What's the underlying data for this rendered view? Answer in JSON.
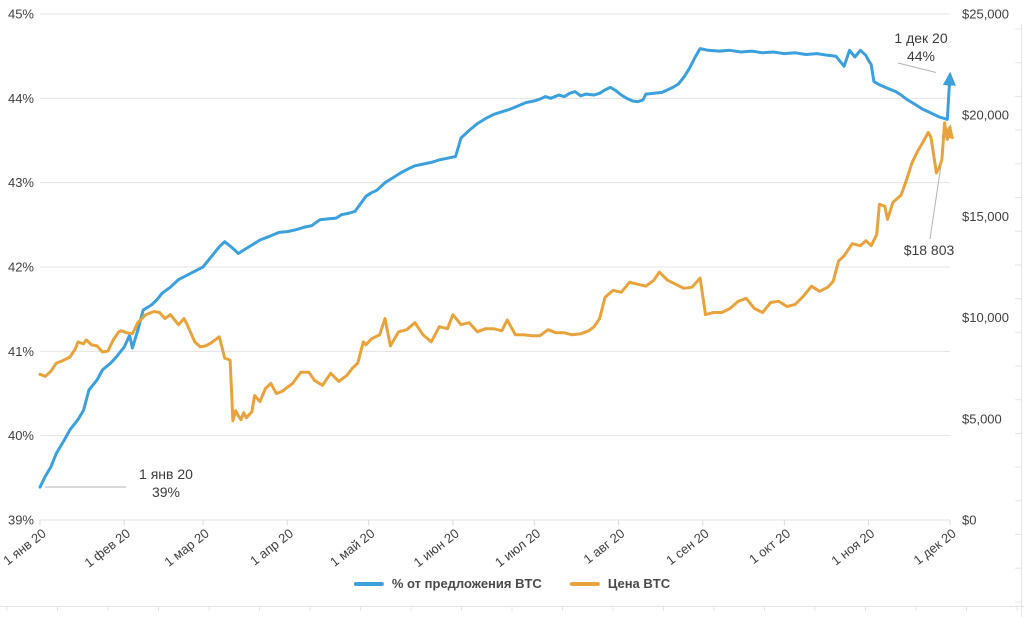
{
  "chart_data": {
    "type": "line",
    "title": "",
    "x_axis": {
      "unit": "day_of_year_2020",
      "range": [
        0,
        335
      ],
      "tick_positions": [
        0,
        31,
        60,
        91,
        121,
        152,
        182,
        213,
        244,
        274,
        305,
        335
      ],
      "tick_labels": [
        "1 янв 20",
        "1 фев 20",
        "1 мар 20",
        "1 апр 20",
        "1 май 20",
        "1 июн 20",
        "1 июл 20",
        "1 авг 20",
        "1 сен 20",
        "1 окт 20",
        "1 ноя 20",
        "1 дек 20"
      ]
    },
    "y_axis_left": {
      "unit": "percent",
      "range": [
        39,
        45
      ],
      "tick_values": [
        39,
        40,
        41,
        42,
        43,
        44,
        45
      ],
      "tick_labels": [
        "39%",
        "40%",
        "41%",
        "42%",
        "43%",
        "44%",
        "45%"
      ]
    },
    "y_axis_right": {
      "unit": "USD",
      "range": [
        0,
        25000
      ],
      "tick_values": [
        0,
        5000,
        10000,
        15000,
        20000,
        25000
      ],
      "tick_labels": [
        "$0",
        "$5,000",
        "$10,000",
        "$15,000",
        "$20,000",
        "$25,000"
      ]
    },
    "grid": "horizontal-on-percent-ticks",
    "legend_position": "bottom-center",
    "series": [
      {
        "name": "% от предложения BTC",
        "axis": "left",
        "color": "#3BA0DC",
        "points": [
          [
            0,
            39.39
          ],
          [
            2,
            39.52
          ],
          [
            4,
            39.63
          ],
          [
            6,
            39.79
          ],
          [
            9,
            39.95
          ],
          [
            11,
            40.07
          ],
          [
            14,
            40.19
          ],
          [
            16,
            40.3
          ],
          [
            18,
            40.54
          ],
          [
            21,
            40.66
          ],
          [
            23,
            40.78
          ],
          [
            26,
            40.86
          ],
          [
            28,
            40.93
          ],
          [
            31,
            41.05
          ],
          [
            33,
            41.19
          ],
          [
            34,
            41.04
          ],
          [
            36,
            41.25
          ],
          [
            38,
            41.49
          ],
          [
            41,
            41.55
          ],
          [
            43,
            41.61
          ],
          [
            45,
            41.69
          ],
          [
            48,
            41.76
          ],
          [
            51,
            41.85
          ],
          [
            54,
            41.9
          ],
          [
            57,
            41.95
          ],
          [
            60,
            42.0
          ],
          [
            63,
            42.12
          ],
          [
            66,
            42.24
          ],
          [
            68,
            42.3
          ],
          [
            71,
            42.22
          ],
          [
            73,
            42.16
          ],
          [
            76,
            42.22
          ],
          [
            79,
            42.28
          ],
          [
            81,
            42.32
          ],
          [
            85,
            42.37
          ],
          [
            88,
            42.41
          ],
          [
            91,
            42.42
          ],
          [
            94,
            42.44
          ],
          [
            97,
            42.47
          ],
          [
            100,
            42.49
          ],
          [
            103,
            42.56
          ],
          [
            106,
            42.57
          ],
          [
            109,
            42.58
          ],
          [
            111,
            42.62
          ],
          [
            114,
            42.64
          ],
          [
            116,
            42.66
          ],
          [
            118,
            42.75
          ],
          [
            120,
            42.84
          ],
          [
            122,
            42.88
          ],
          [
            124,
            42.91
          ],
          [
            127,
            43.0
          ],
          [
            130,
            43.06
          ],
          [
            133,
            43.12
          ],
          [
            136,
            43.17
          ],
          [
            138,
            43.2
          ],
          [
            141,
            43.22
          ],
          [
            144,
            43.24
          ],
          [
            147,
            43.27
          ],
          [
            150,
            43.29
          ],
          [
            153,
            43.31
          ],
          [
            155,
            43.53
          ],
          [
            158,
            43.62
          ],
          [
            161,
            43.7
          ],
          [
            164,
            43.76
          ],
          [
            167,
            43.81
          ],
          [
            170,
            43.84
          ],
          [
            173,
            43.87
          ],
          [
            176,
            43.91
          ],
          [
            179,
            43.95
          ],
          [
            182,
            43.97
          ],
          [
            184,
            43.99
          ],
          [
            186,
            44.02
          ],
          [
            188,
            44.0
          ],
          [
            191,
            44.04
          ],
          [
            193,
            44.02
          ],
          [
            195,
            44.06
          ],
          [
            197,
            44.08
          ],
          [
            199,
            44.03
          ],
          [
            201,
            44.05
          ],
          [
            204,
            44.04
          ],
          [
            206,
            44.06
          ],
          [
            208,
            44.1
          ],
          [
            210,
            44.13
          ],
          [
            212,
            44.09
          ],
          [
            214,
            44.04
          ],
          [
            216,
            44.0
          ],
          [
            218,
            43.97
          ],
          [
            220,
            43.96
          ],
          [
            222,
            43.98
          ],
          [
            223,
            44.05
          ],
          [
            226,
            44.06
          ],
          [
            229,
            44.07
          ],
          [
            231,
            44.1
          ],
          [
            233,
            44.13
          ],
          [
            235,
            44.17
          ],
          [
            237,
            44.25
          ],
          [
            239,
            44.35
          ],
          [
            241,
            44.48
          ],
          [
            243,
            44.59
          ],
          [
            246,
            44.57
          ],
          [
            250,
            44.56
          ],
          [
            254,
            44.57
          ],
          [
            258,
            44.55
          ],
          [
            262,
            44.56
          ],
          [
            266,
            44.54
          ],
          [
            270,
            44.55
          ],
          [
            274,
            44.53
          ],
          [
            278,
            44.54
          ],
          [
            282,
            44.52
          ],
          [
            286,
            44.53
          ],
          [
            290,
            44.51
          ],
          [
            293,
            44.5
          ],
          [
            296,
            44.38
          ],
          [
            298,
            44.57
          ],
          [
            300,
            44.49
          ],
          [
            302,
            44.57
          ],
          [
            304,
            44.51
          ],
          [
            305,
            44.45
          ],
          [
            306,
            44.4
          ],
          [
            307,
            44.2
          ],
          [
            309,
            44.16
          ],
          [
            312,
            44.12
          ],
          [
            315,
            44.08
          ],
          [
            317,
            44.04
          ],
          [
            319,
            43.99
          ],
          [
            321,
            43.95
          ],
          [
            323,
            43.91
          ],
          [
            325,
            43.87
          ],
          [
            327,
            43.84
          ],
          [
            329,
            43.81
          ],
          [
            331,
            43.78
          ],
          [
            333,
            43.76
          ],
          [
            334,
            43.75
          ],
          [
            335,
            44.28
          ]
        ]
      },
      {
        "name": "Цена BTC",
        "axis": "right",
        "color": "#E8A33C",
        "points": [
          [
            0,
            7200
          ],
          [
            2,
            7100
          ],
          [
            4,
            7350
          ],
          [
            6,
            7750
          ],
          [
            8,
            7850
          ],
          [
            11,
            8050
          ],
          [
            13,
            8450
          ],
          [
            14,
            8800
          ],
          [
            16,
            8700
          ],
          [
            17,
            8900
          ],
          [
            19,
            8650
          ],
          [
            21,
            8600
          ],
          [
            23,
            8300
          ],
          [
            25,
            8350
          ],
          [
            27,
            8900
          ],
          [
            29,
            9300
          ],
          [
            30,
            9350
          ],
          [
            32,
            9250
          ],
          [
            34,
            9200
          ],
          [
            36,
            9750
          ],
          [
            39,
            10150
          ],
          [
            42,
            10300
          ],
          [
            44,
            10250
          ],
          [
            46,
            9950
          ],
          [
            48,
            10150
          ],
          [
            51,
            9650
          ],
          [
            53,
            9950
          ],
          [
            54,
            9700
          ],
          [
            57,
            8800
          ],
          [
            59,
            8550
          ],
          [
            61,
            8600
          ],
          [
            63,
            8750
          ],
          [
            66,
            9050
          ],
          [
            68,
            8000
          ],
          [
            70,
            7900
          ],
          [
            71,
            4900
          ],
          [
            72,
            5400
          ],
          [
            73,
            5150
          ],
          [
            74,
            4950
          ],
          [
            75,
            5300
          ],
          [
            76,
            5050
          ],
          [
            78,
            5350
          ],
          [
            79,
            6150
          ],
          [
            81,
            5850
          ],
          [
            83,
            6500
          ],
          [
            85,
            6750
          ],
          [
            87,
            6250
          ],
          [
            89,
            6350
          ],
          [
            90,
            6450
          ],
          [
            93,
            6750
          ],
          [
            96,
            7300
          ],
          [
            99,
            7300
          ],
          [
            101,
            6900
          ],
          [
            104,
            6650
          ],
          [
            107,
            7250
          ],
          [
            110,
            6850
          ],
          [
            113,
            7150
          ],
          [
            115,
            7500
          ],
          [
            117,
            7750
          ],
          [
            119,
            8800
          ],
          [
            120,
            8650
          ],
          [
            122,
            8950
          ],
          [
            125,
            9150
          ],
          [
            127,
            9950
          ],
          [
            129,
            8600
          ],
          [
            132,
            9300
          ],
          [
            135,
            9400
          ],
          [
            138,
            9750
          ],
          [
            141,
            9150
          ],
          [
            144,
            8800
          ],
          [
            147,
            9550
          ],
          [
            150,
            9450
          ],
          [
            152,
            10150
          ],
          [
            155,
            9650
          ],
          [
            158,
            9750
          ],
          [
            161,
            9300
          ],
          [
            164,
            9450
          ],
          [
            167,
            9450
          ],
          [
            170,
            9350
          ],
          [
            172,
            9880
          ],
          [
            175,
            9150
          ],
          [
            178,
            9150
          ],
          [
            181,
            9100
          ],
          [
            184,
            9100
          ],
          [
            187,
            9400
          ],
          [
            190,
            9250
          ],
          [
            193,
            9250
          ],
          [
            196,
            9150
          ],
          [
            199,
            9200
          ],
          [
            202,
            9350
          ],
          [
            204,
            9550
          ],
          [
            206,
            9950
          ],
          [
            208,
            11000
          ],
          [
            211,
            11350
          ],
          [
            214,
            11250
          ],
          [
            217,
            11750
          ],
          [
            220,
            11650
          ],
          [
            223,
            11550
          ],
          [
            226,
            11850
          ],
          [
            228,
            12250
          ],
          [
            231,
            11850
          ],
          [
            234,
            11650
          ],
          [
            237,
            11450
          ],
          [
            240,
            11500
          ],
          [
            243,
            11950
          ],
          [
            245,
            10150
          ],
          [
            248,
            10250
          ],
          [
            251,
            10250
          ],
          [
            254,
            10450
          ],
          [
            257,
            10800
          ],
          [
            260,
            10950
          ],
          [
            263,
            10450
          ],
          [
            266,
            10250
          ],
          [
            269,
            10750
          ],
          [
            272,
            10800
          ],
          [
            275,
            10550
          ],
          [
            278,
            10650
          ],
          [
            281,
            11050
          ],
          [
            284,
            11550
          ],
          [
            287,
            11300
          ],
          [
            290,
            11500
          ],
          [
            292,
            11800
          ],
          [
            294,
            12800
          ],
          [
            296,
            13050
          ],
          [
            299,
            13650
          ],
          [
            302,
            13550
          ],
          [
            304,
            13800
          ],
          [
            306,
            13550
          ],
          [
            308,
            14100
          ],
          [
            309,
            15600
          ],
          [
            311,
            15500
          ],
          [
            312,
            14850
          ],
          [
            314,
            15700
          ],
          [
            317,
            16050
          ],
          [
            319,
            16800
          ],
          [
            321,
            17650
          ],
          [
            323,
            18200
          ],
          [
            325,
            18650
          ],
          [
            327,
            19150
          ],
          [
            328,
            18900
          ],
          [
            330,
            17150
          ],
          [
            331,
            17400
          ],
          [
            332,
            17800
          ],
          [
            333,
            19625
          ],
          [
            334,
            18803
          ],
          [
            335,
            19400
          ]
        ]
      }
    ],
    "annotations": [
      {
        "id": "start-pct",
        "target_series": "% от предложения BTC",
        "target_x": 0,
        "lines": [
          "1 янв 20",
          "39%"
        ]
      },
      {
        "id": "end-pct",
        "target_series": "% от предложения BTC",
        "target_x": 335,
        "lines": [
          "1 дек 20",
          "44%"
        ]
      },
      {
        "id": "end-usd",
        "target_series": "Цена BTC",
        "target_x": 334,
        "lines": [
          "$18 803"
        ]
      }
    ]
  },
  "colors": {
    "grid": "#e3e3e3",
    "axis_text": "#3f3f3f",
    "annotation_text": "#3b3b3b",
    "connector": "#b3b3b3",
    "edge_artifact": "#e4e4e4",
    "tick": "#d9d9d9"
  }
}
